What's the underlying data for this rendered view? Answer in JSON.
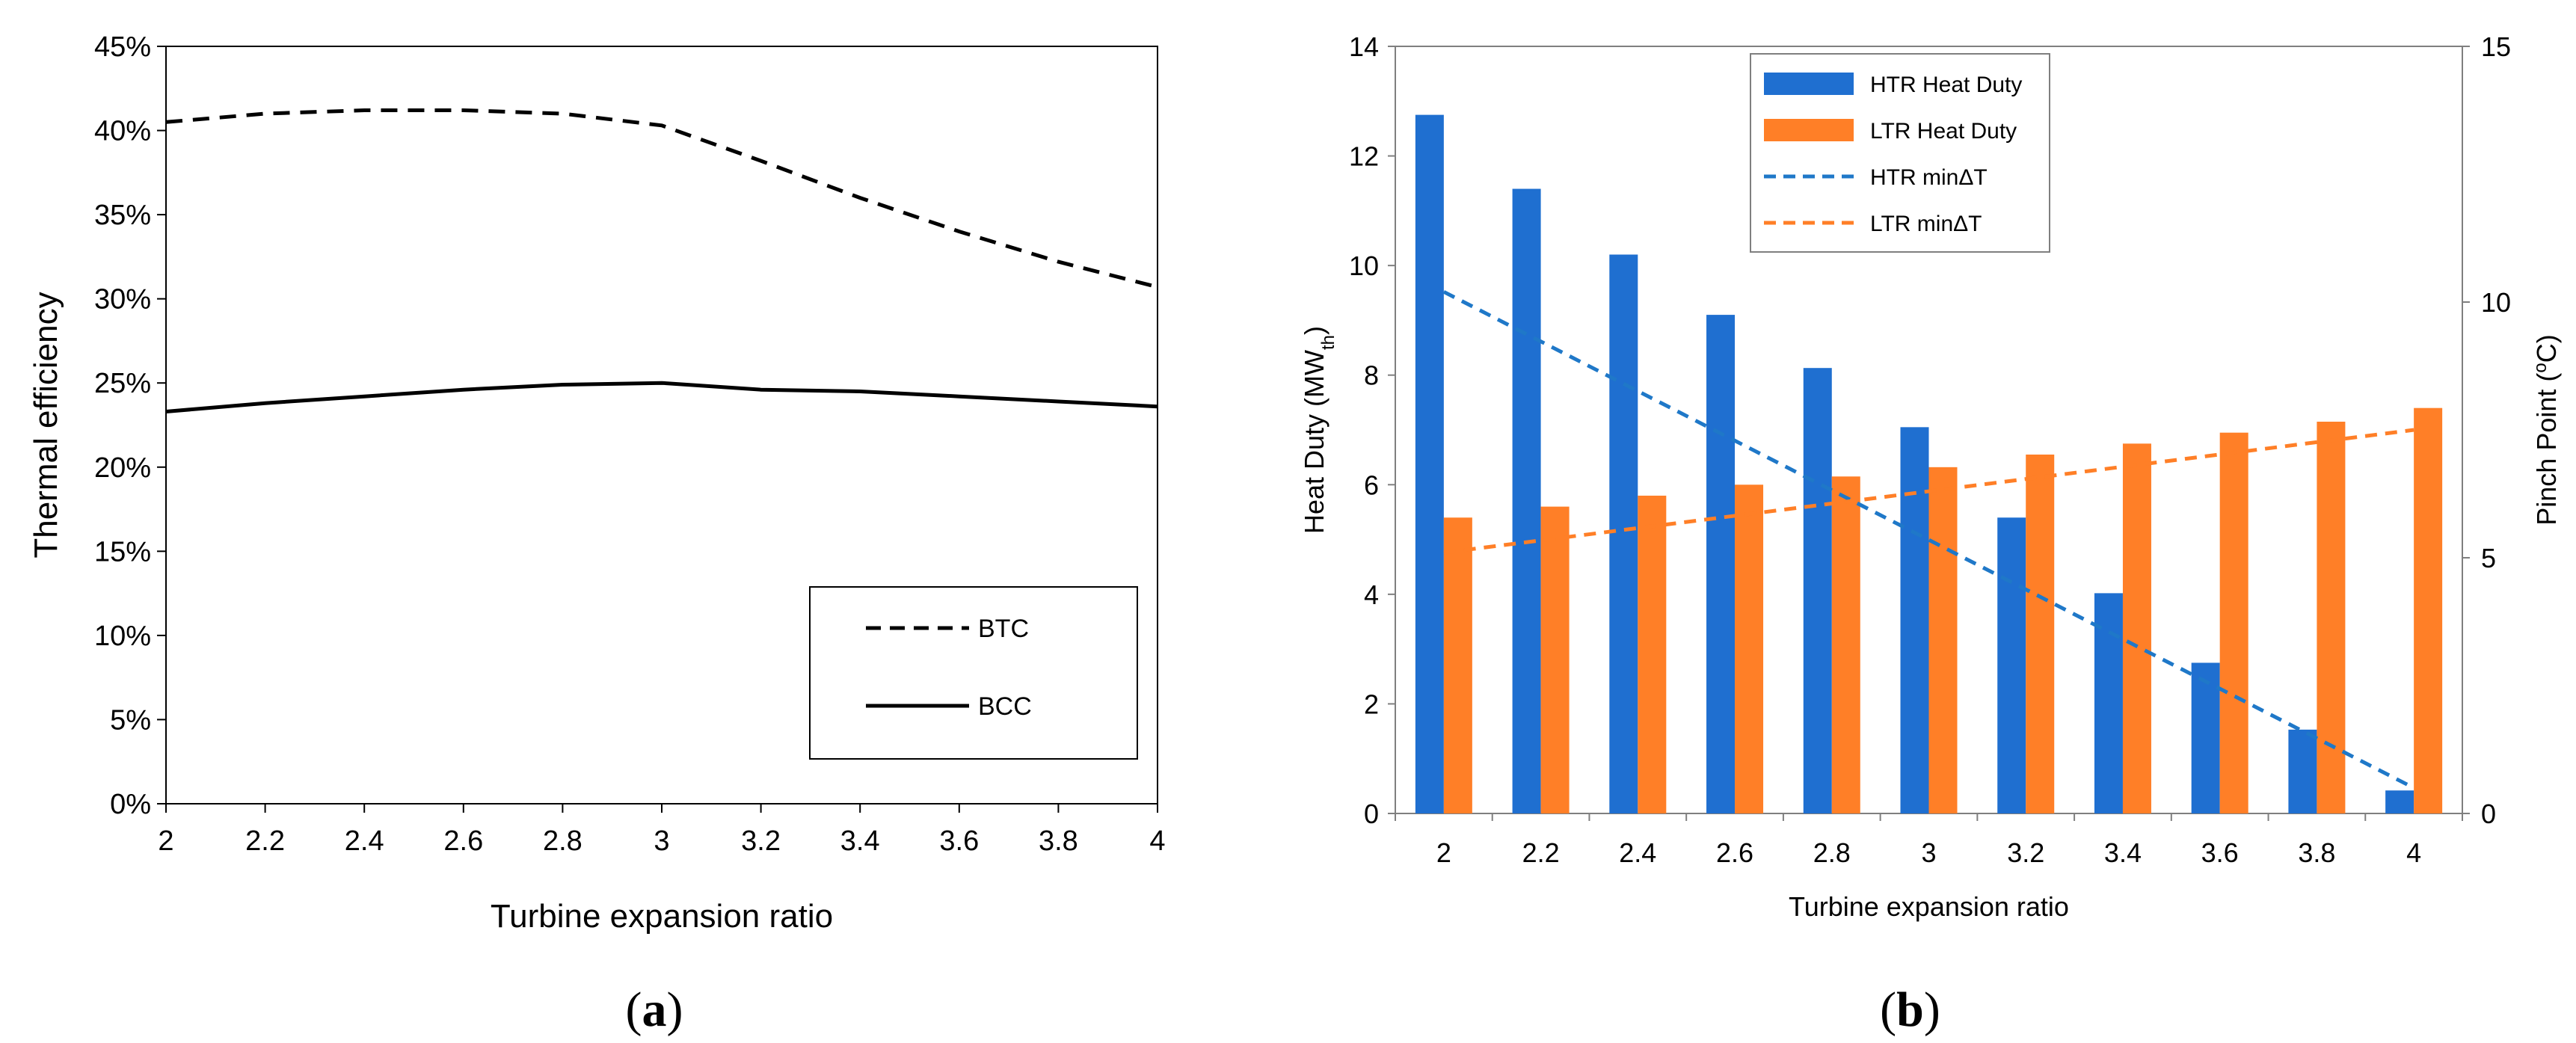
{
  "chart_data": [
    {
      "type": "line",
      "panel_label_prefix": "(",
      "panel_label_letter": "a",
      "panel_label_suffix": ")",
      "xlabel": "Turbine expansion ratio",
      "ylabel": "Thermal efficiency",
      "xlim": [
        2,
        4
      ],
      "ylim": [
        0,
        45
      ],
      "x_ticks": [
        "2",
        "2.2",
        "2.4",
        "2.6",
        "2.8",
        "3",
        "3.2",
        "3.4",
        "3.6",
        "3.8",
        "4"
      ],
      "y_ticks": [
        "0%",
        "5%",
        "10%",
        "15%",
        "20%",
        "25%",
        "30%",
        "35%",
        "40%",
        "45%"
      ],
      "x": [
        2,
        2.2,
        2.4,
        2.6,
        2.8,
        3,
        3.2,
        3.4,
        3.6,
        3.8,
        4
      ],
      "series": [
        {
          "name": "BTC",
          "style": "dashed",
          "color": "#000000",
          "values": [
            40.5,
            41.0,
            41.2,
            41.2,
            41.0,
            40.3,
            38.2,
            36.0,
            34.0,
            32.2,
            30.7
          ]
        },
        {
          "name": "BCC",
          "style": "solid",
          "color": "#000000",
          "values": [
            23.3,
            23.8,
            24.2,
            24.6,
            24.9,
            25.0,
            24.6,
            24.5,
            24.2,
            23.9,
            23.6
          ]
        }
      ],
      "legend_position": "bottom-right"
    },
    {
      "type": "bar",
      "panel_label_prefix": "(",
      "panel_label_letter": "b",
      "panel_label_suffix": ")",
      "xlabel": "Turbine expansion ratio",
      "ylabel_main": "Heat Duty (MW",
      "ylabel_sub": "th",
      "ylabel_close": ")",
      "y2label_main": "Pinch Point (",
      "y2label_sup": "o",
      "y2label_close": "C)",
      "categories": [
        "2",
        "2.2",
        "2.4",
        "2.6",
        "2.8",
        "3",
        "3.2",
        "3.4",
        "3.6",
        "3.8",
        "4"
      ],
      "ylim": [
        0,
        14
      ],
      "y_ticks": [
        "0",
        "2",
        "4",
        "6",
        "8",
        "10",
        "12",
        "14"
      ],
      "y2lim": [
        0,
        15
      ],
      "y2_ticks": [
        "0",
        "5",
        "10",
        "15"
      ],
      "series": [
        {
          "name": "HTR Heat Duty",
          "kind": "bar",
          "axis": "left",
          "color": "#1F6FD0",
          "values": [
            12.75,
            11.4,
            10.2,
            9.1,
            8.13,
            7.05,
            5.4,
            4.02,
            2.75,
            1.53,
            0.42
          ]
        },
        {
          "name": "LTR Heat Duty",
          "kind": "bar",
          "axis": "left",
          "color": "#FF7F27",
          "values": [
            5.4,
            5.6,
            5.8,
            6.0,
            6.15,
            6.32,
            6.55,
            6.75,
            6.95,
            7.15,
            7.4
          ]
        },
        {
          "name": "HTR minΔT",
          "kind": "line",
          "axis": "right",
          "color": "#1F78C8",
          "x_start": "2",
          "x_end": "4",
          "start": 10.2,
          "end": 0.5
        },
        {
          "name": "LTR minΔT",
          "kind": "line",
          "axis": "right",
          "color": "#FF7F27",
          "x_start": "2",
          "x_end": "4",
          "start": 5.1,
          "end": 7.5
        }
      ],
      "legend_position": "top-left"
    }
  ]
}
